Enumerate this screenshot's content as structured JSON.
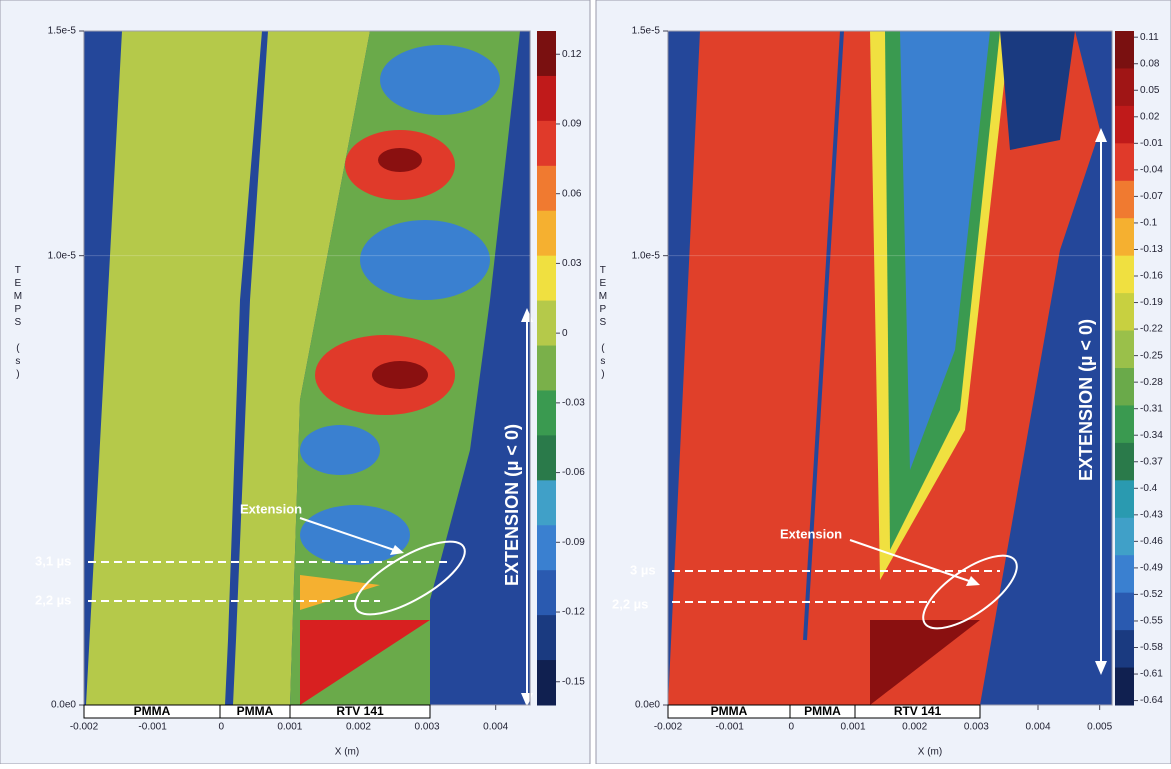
{
  "chart_data": [
    {
      "type": "contour",
      "xlabel": "X (m)",
      "ylabel": "TEMPS (s)",
      "xlim": [
        -0.002,
        0.0045
      ],
      "xticks": [
        -0.002,
        -0.001,
        0,
        0.001,
        0.002,
        0.003,
        0.004
      ],
      "ylim": [
        0,
        1.5e-05
      ],
      "yticks": [
        {
          "value": 0,
          "label": "0.0e0"
        },
        {
          "value": 1e-05,
          "label": "1.0e-5"
        },
        {
          "value": 1.5e-05,
          "label": "1.5e-5"
        }
      ],
      "clim": [
        -0.16,
        0.13
      ],
      "cticks": [
        0.12,
        0.09,
        0.06,
        0.03,
        0,
        -0.03,
        -0.06,
        -0.09,
        -0.12,
        -0.15
      ],
      "colorbar_colors": [
        "#7a1010",
        "#c01a1a",
        "#e03a2a",
        "#f07a30",
        "#f5b030",
        "#f0e040",
        "#b5c94a",
        "#7ab04a",
        "#3a9a50",
        "#2a7a4a",
        "#40a0c8",
        "#3a80d0",
        "#2a5ab0",
        "#1a3a80",
        "#102050"
      ],
      "materials": [
        "PMMA",
        "PMMA",
        "RTV 141"
      ],
      "annotations": [
        "Extension",
        "3,1 µs",
        "2,2 µs",
        "EXTENSION (µ < 0)"
      ]
    },
    {
      "type": "contour",
      "xlabel": "X (m)",
      "ylabel": "TEMPS (s)",
      "xlim": [
        -0.002,
        0.0052
      ],
      "xticks": [
        -0.002,
        -0.001,
        0,
        0.001,
        0.002,
        0.003,
        0.004,
        0.005
      ],
      "ylim": [
        0,
        1.5e-05
      ],
      "yticks": [
        {
          "value": 0,
          "label": "0.0e0"
        },
        {
          "value": 1e-05,
          "label": "1.0e-5"
        },
        {
          "value": 1.5e-05,
          "label": "1.5e-5"
        }
      ],
      "clim": [
        -0.645,
        0.117
      ],
      "cticks": [
        0.11,
        0.08,
        0.05,
        0.02,
        -0.01,
        -0.04,
        -0.07,
        -0.1,
        -0.13,
        -0.16,
        -0.19,
        -0.22,
        -0.25,
        -0.28,
        -0.31,
        -0.34,
        -0.37,
        -0.4,
        -0.43,
        -0.46,
        -0.49,
        -0.52,
        -0.55,
        -0.58,
        -0.61,
        -0.64
      ],
      "colorbar_colors": [
        "#7a1010",
        "#a01515",
        "#c01a1a",
        "#e03a2a",
        "#f07a30",
        "#f5b030",
        "#f0e040",
        "#c8d040",
        "#9ac04a",
        "#6aaa4a",
        "#3a9a50",
        "#2a7a4a",
        "#2a9ab0",
        "#40a0c8",
        "#3a80d0",
        "#2a5ab0",
        "#1a3a80",
        "#102050"
      ],
      "materials": [
        "PMMA",
        "PMMA",
        "RTV 141"
      ],
      "annotations": [
        "Extension",
        "3 µs",
        "2,2 µs",
        "EXTENSION (µ < 0)"
      ]
    }
  ]
}
